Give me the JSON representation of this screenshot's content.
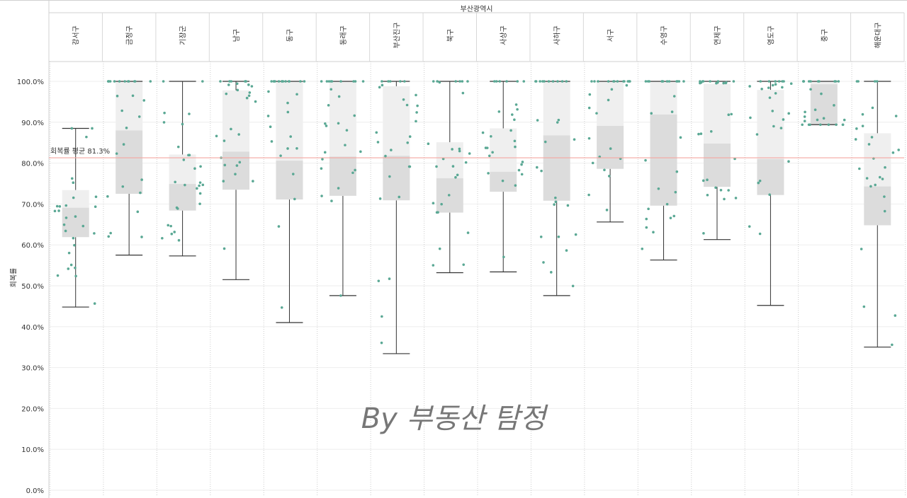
{
  "chart_data": {
    "type": "boxplot",
    "header_title": "부산광역시",
    "ylabel": "회복률",
    "yticks": [
      "100.0%",
      "90.0%",
      "80.0%",
      "70.0%",
      "60.0%",
      "50.0%",
      "40.0%",
      "30.0%",
      "20.0%",
      "10.0%",
      "0.0%"
    ],
    "ylim": [
      0,
      100
    ],
    "reference_line": {
      "label": "회복률 평균 81.3%",
      "value": 81.3,
      "color": "#f4a6a0"
    },
    "watermark": "By 부동산 탐정",
    "box_color_upper": "#efefef",
    "box_color_lower": "#dcdcdc",
    "point_color": "#5aa894",
    "categories": [
      "강서구",
      "금정구",
      "기장군",
      "남구",
      "동구",
      "동래구",
      "부산진구",
      "북구",
      "사상구",
      "사하구",
      "서구",
      "수영구",
      "연제구",
      "영도구",
      "중구",
      "해운대구"
    ],
    "boxes": [
      {
        "min": 44.8,
        "q1": 61.9,
        "median": 69.1,
        "q3": 73.4,
        "max": 88.5
      },
      {
        "min": 57.5,
        "q1": 72.5,
        "median": 88.0,
        "q3": 100.0,
        "max": 100.0
      },
      {
        "min": 57.3,
        "q1": 68.4,
        "median": 74.9,
        "q3": 82.1,
        "max": 100.0
      },
      {
        "min": 51.5,
        "q1": 73.5,
        "median": 82.8,
        "q3": 97.8,
        "max": 100.0
      },
      {
        "min": 41.0,
        "q1": 71.1,
        "median": 80.6,
        "q3": 100.0,
        "max": 100.0
      },
      {
        "min": 47.6,
        "q1": 72.0,
        "median": 81.6,
        "q3": 100.0,
        "max": 100.0
      },
      {
        "min": 33.4,
        "q1": 70.9,
        "median": 81.8,
        "q3": 98.8,
        "max": 100.0
      },
      {
        "min": 53.2,
        "q1": 67.9,
        "median": 76.3,
        "q3": 85.1,
        "max": 100.0
      },
      {
        "min": 53.4,
        "q1": 73.0,
        "median": 77.9,
        "q3": 88.5,
        "max": 100.0
      },
      {
        "min": 47.6,
        "q1": 70.8,
        "median": 86.8,
        "q3": 100.0,
        "max": 100.0
      },
      {
        "min": 65.6,
        "q1": 78.6,
        "median": 89.1,
        "q3": 100.0,
        "max": 100.0
      },
      {
        "min": 56.3,
        "q1": 69.6,
        "median": 91.9,
        "q3": 100.0,
        "max": 100.0
      },
      {
        "min": 61.3,
        "q1": 74.2,
        "median": 84.8,
        "q3": 99.4,
        "max": 100.0
      },
      {
        "min": 45.2,
        "q1": 72.2,
        "median": 81.0,
        "q3": 97.9,
        "max": 100.0
      },
      {
        "min": 89.4,
        "q1": 89.4,
        "median": 99.3,
        "q3": 100.0,
        "max": 100.0
      },
      {
        "min": 35.0,
        "q1": 64.8,
        "median": 74.3,
        "q3": 87.3,
        "max": 100.0
      }
    ]
  }
}
